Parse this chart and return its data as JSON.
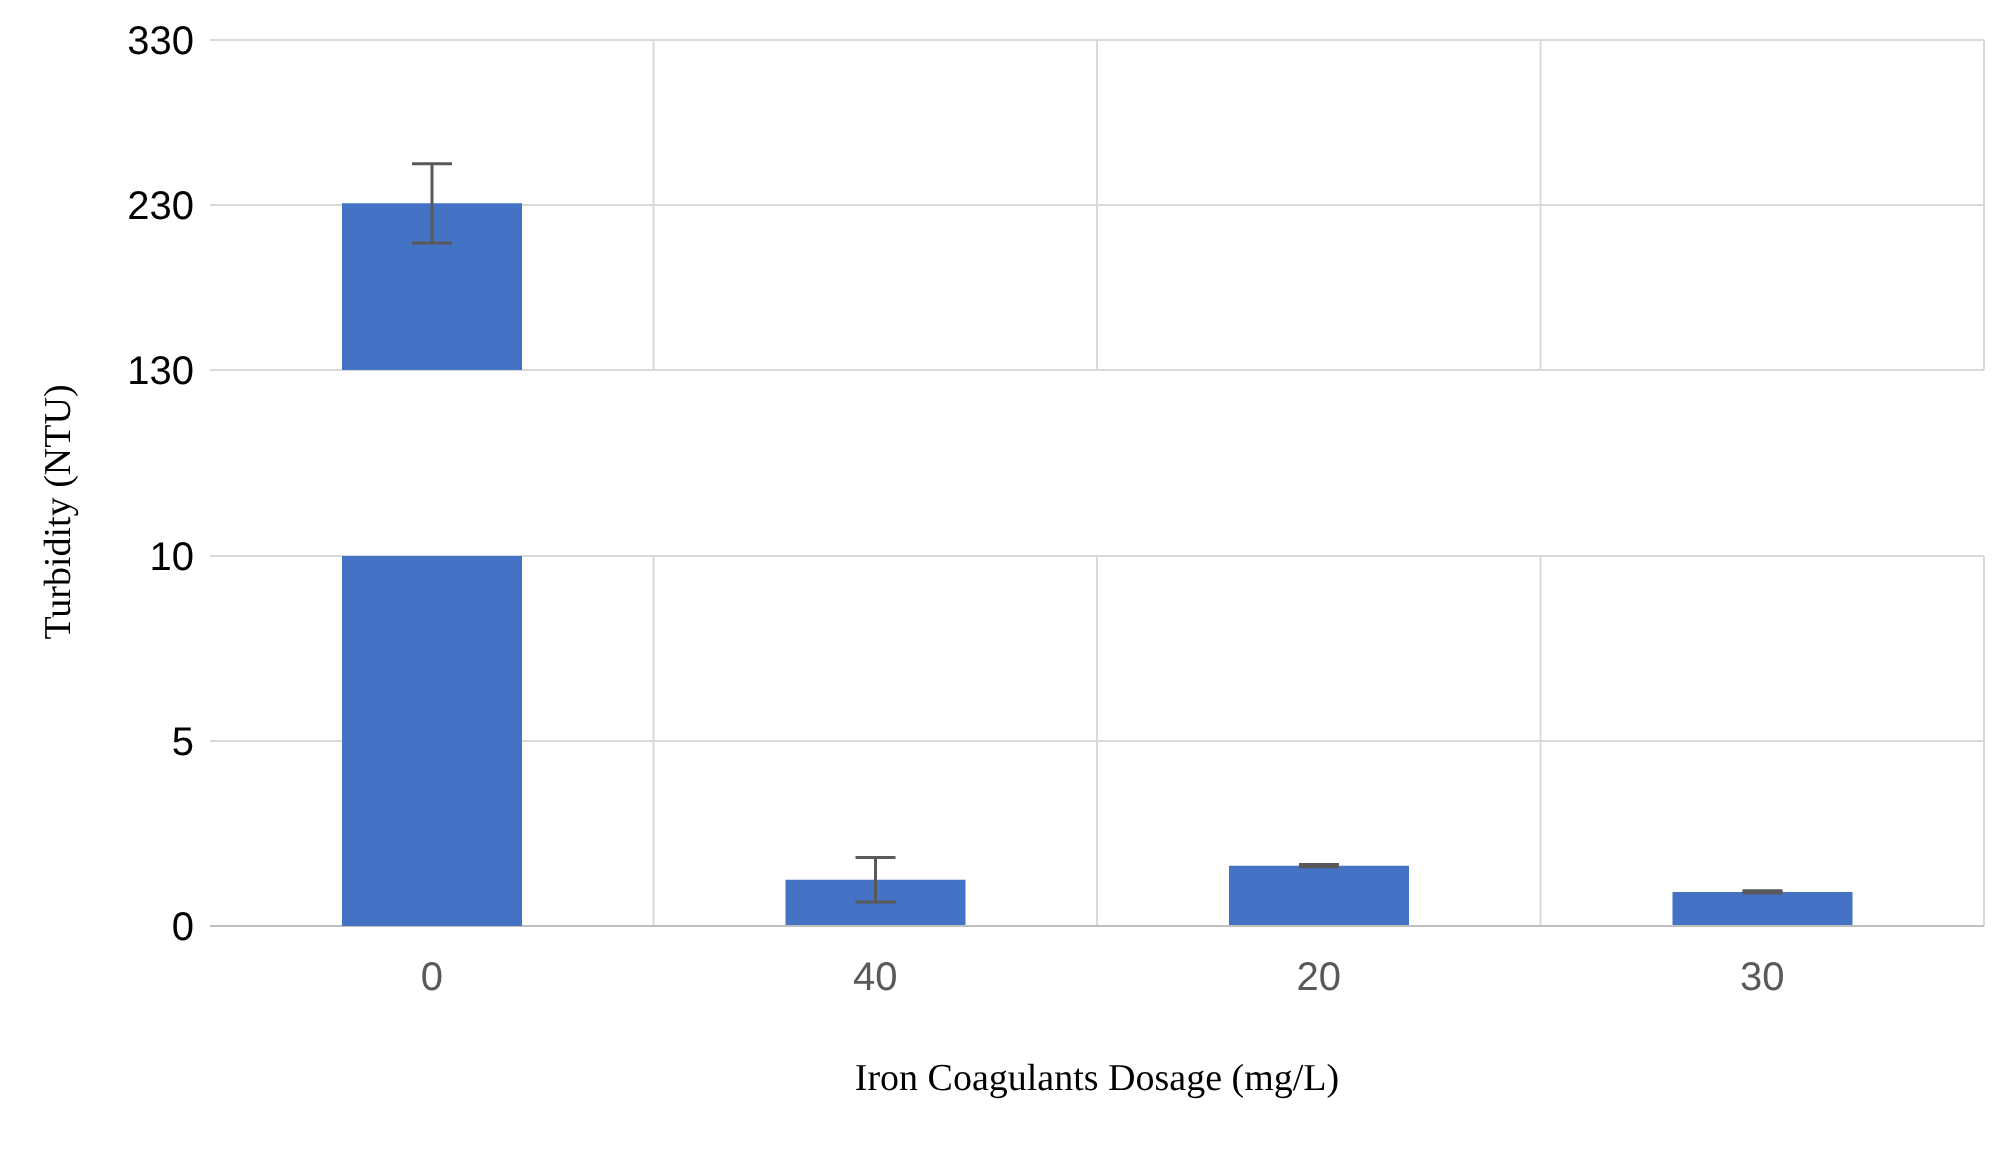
{
  "chart_data": [
    {
      "type": "bar",
      "categories": [
        "0",
        "40",
        "20",
        "30"
      ],
      "values": [
        231,
        null,
        null,
        null
      ],
      "errors": [
        24,
        null,
        null,
        null
      ],
      "color": "#4472c4",
      "ylim": [
        130,
        330
      ],
      "yticks": [
        130,
        230,
        330
      ],
      "grid": true,
      "tick_labels": "y"
    },
    {
      "type": "bar",
      "xlabel": "Iron Coagulants Dosage (mg/L)",
      "ylabel": "Turbidity (NTU)",
      "categories": [
        "0",
        "40",
        "20",
        "30"
      ],
      "values": [
        null,
        1.25,
        1.63,
        0.92
      ],
      "errors": [
        null,
        0.6,
        0.03,
        0.03
      ],
      "color": "#4472c4",
      "ylim": [
        0,
        10
      ],
      "yticks": [
        0,
        5,
        10
      ],
      "grid": true
    }
  ]
}
